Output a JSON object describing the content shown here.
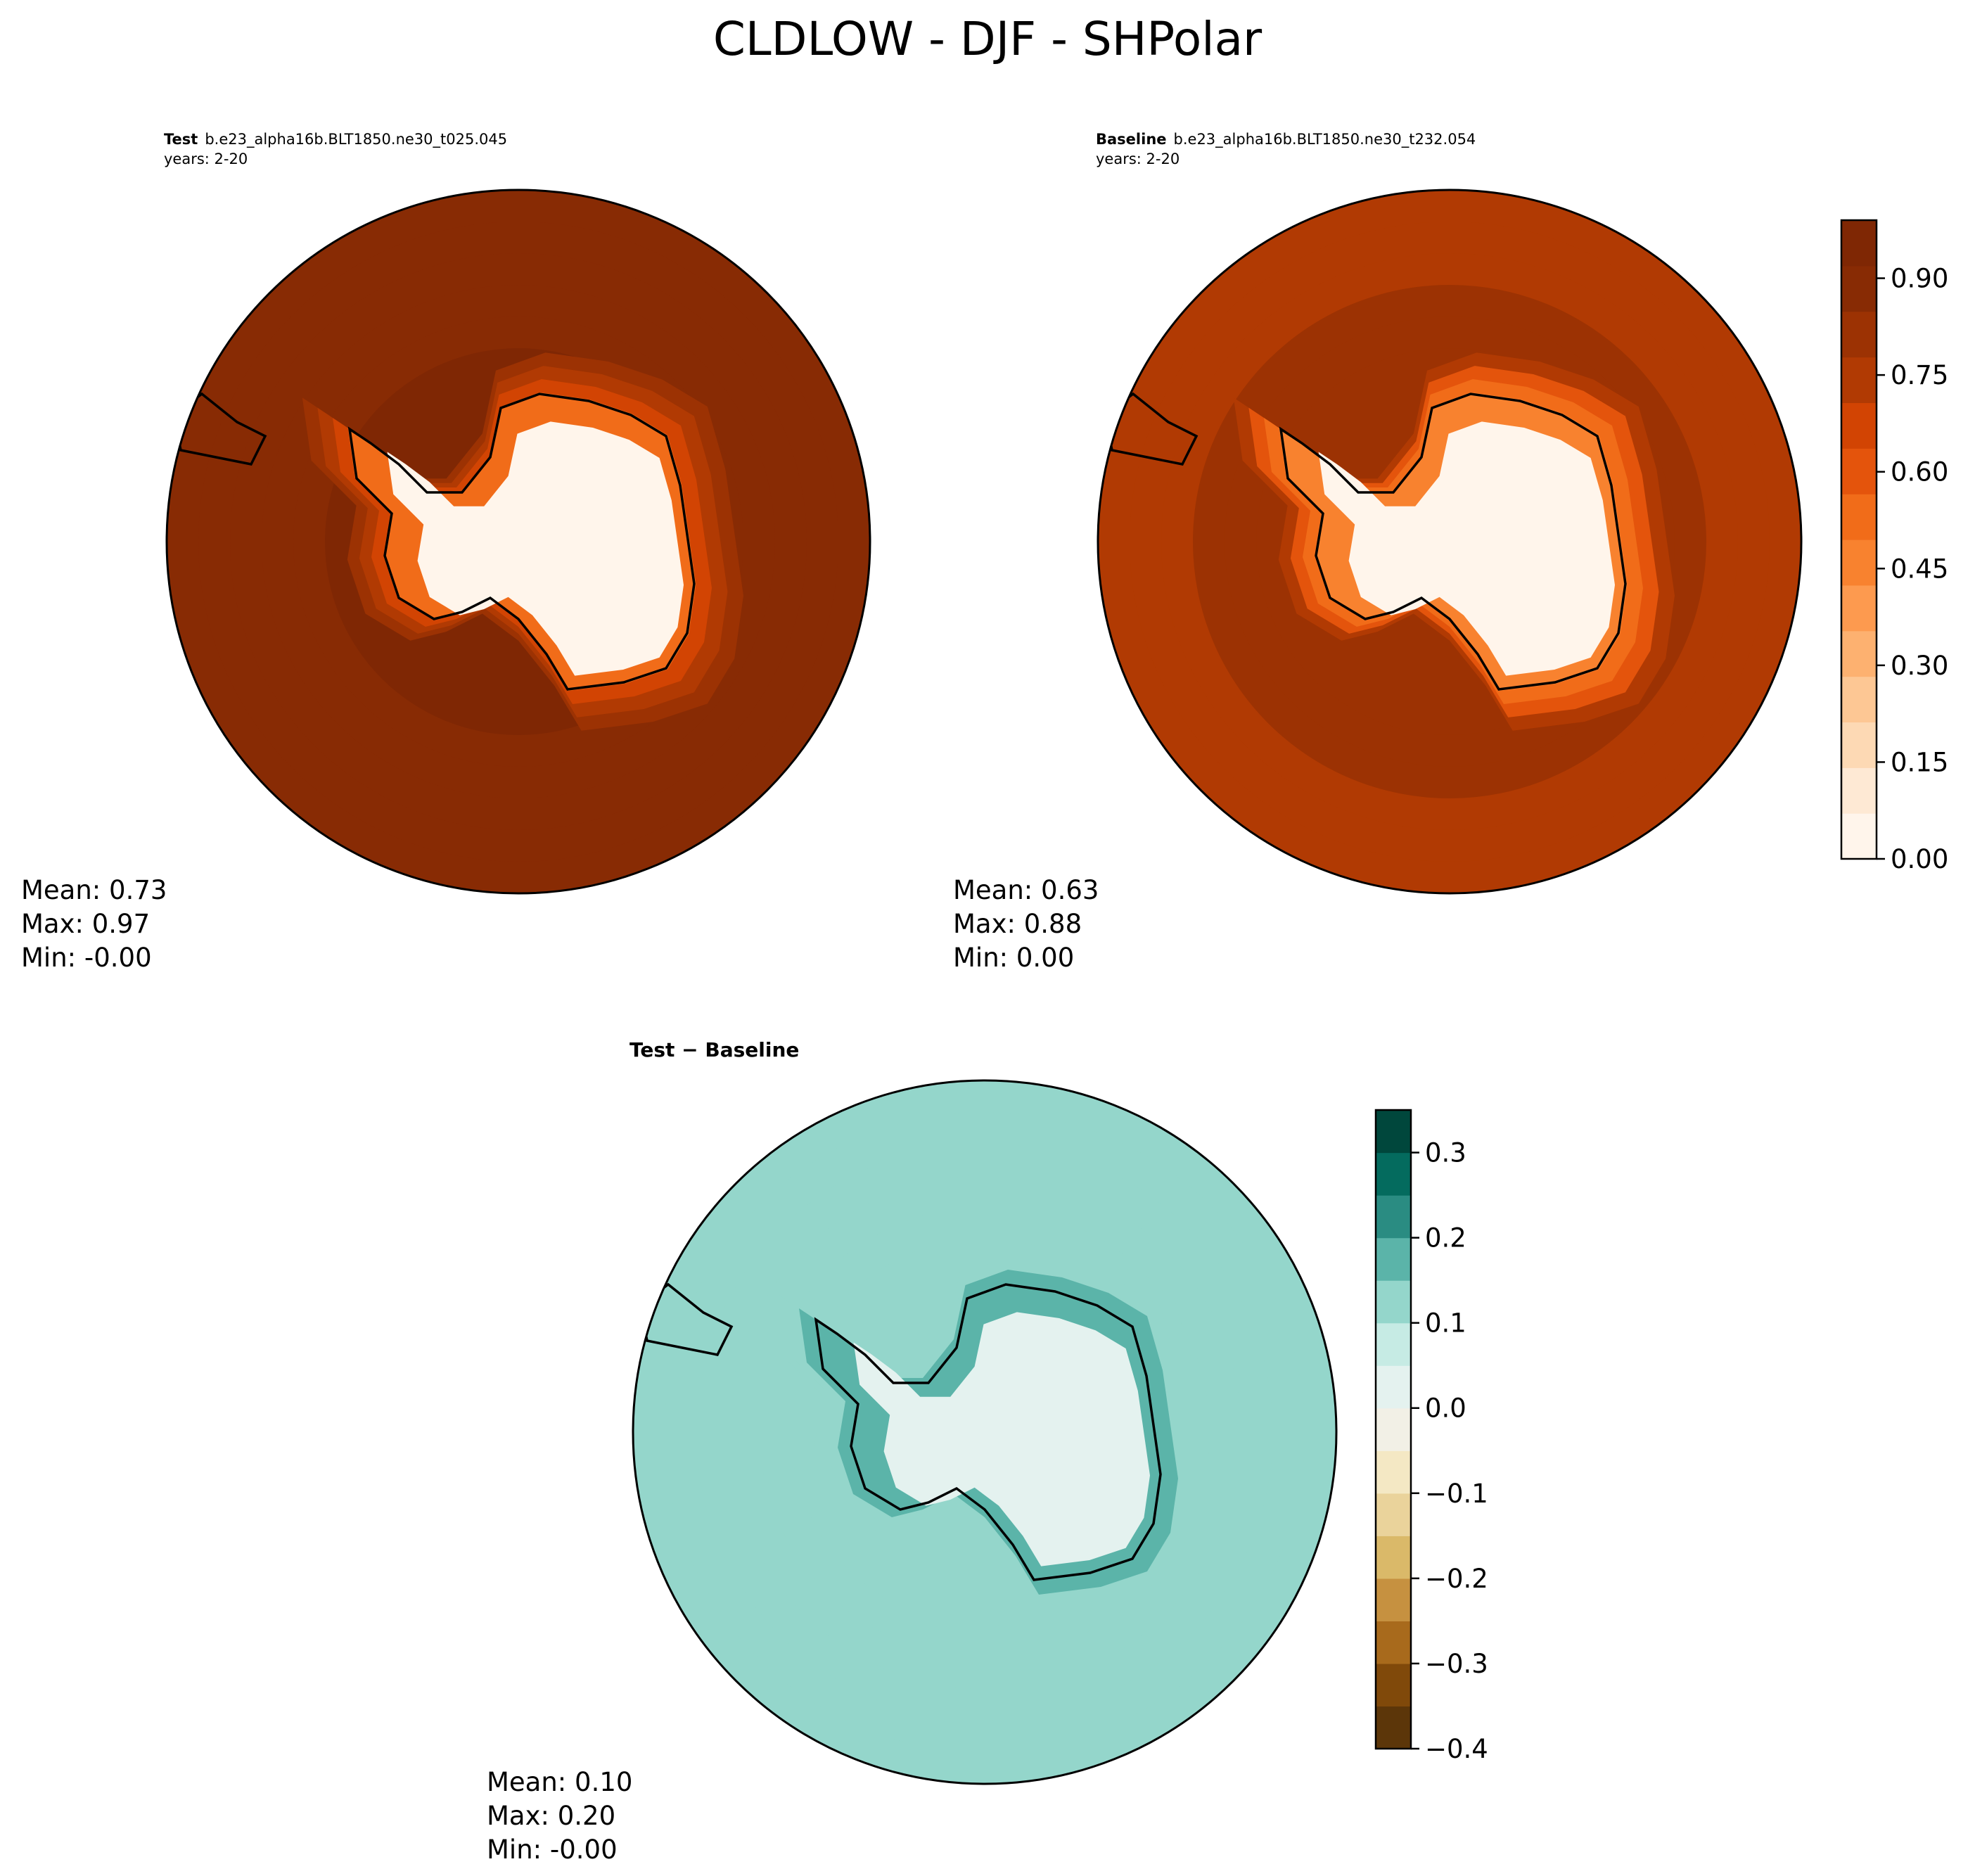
{
  "figure": {
    "title": "CLDLOW - DJF - SHPolar"
  },
  "colors": {
    "oranges": [
      "#fff5eb",
      "#fee9d4",
      "#fdd9b4",
      "#fdc794",
      "#fdb170",
      "#fd9a4f",
      "#f8822f",
      "#f16c19",
      "#e4540c",
      "#d24403",
      "#b13a03",
      "#9c3203",
      "#882b04",
      "#7f2704"
    ],
    "brbg": [
      "#5c3609",
      "#80490a",
      "#a86a1c",
      "#c69140",
      "#dab969",
      "#ead39b",
      "#f4e8c4",
      "#f2f0e6",
      "#e4f2ef",
      "#c6ebe4",
      "#94d6cb",
      "#5bb4a9",
      "#2a8c82",
      "#046b5e",
      "#00473c"
    ],
    "coast": "#000000"
  },
  "chart_data": [
    {
      "type": "heatmap",
      "panel": "test",
      "label_bold": "Test",
      "case": "b.e23_alpha16b.BLT1850.ne30_t025.045",
      "years": "years: 2-20",
      "stats": {
        "mean": "Mean:  0.73",
        "max": "Max:  0.97",
        "min": "Min: -0.00"
      },
      "field_levels": {
        "ocean_far": 0.88,
        "ocean_mid": 0.92,
        "coast": 0.55,
        "interior": 0.0
      },
      "colorbar": null
    },
    {
      "type": "heatmap",
      "panel": "baseline",
      "label_bold": "Baseline",
      "case": "b.e23_alpha16b.BLT1850.ne30_t232.054",
      "years": "years: 2-20",
      "stats": {
        "mean": "Mean:  0.63",
        "max": "Max:  0.88",
        "min": "Min:  0.00"
      },
      "field_levels": {
        "ocean_far": 0.74,
        "ocean_mid": 0.82,
        "coast": 0.45,
        "interior": 0.03
      },
      "colorbar": {
        "ticks": [
          "0.00",
          "0.15",
          "0.30",
          "0.45",
          "0.60",
          "0.75",
          "0.90"
        ],
        "range": [
          0,
          0.99
        ],
        "colormap": "Oranges"
      }
    },
    {
      "type": "heatmap",
      "panel": "difference",
      "label_bold": "Test − Baseline",
      "stats": {
        "mean": "Mean:  0.10",
        "max": "Max:  0.20",
        "min": "Min: -0.00"
      },
      "field_levels": {
        "ocean_far": 0.14,
        "ocean_mid": 0.1,
        "coast": 0.17,
        "interior": 0.02
      },
      "colorbar": {
        "ticks": [
          "−0.4",
          "−0.3",
          "−0.2",
          "−0.1",
          "0.0",
          "0.1",
          "0.2",
          "0.3"
        ],
        "range": [
          -0.4,
          0.35
        ],
        "colormap": "BrBG"
      }
    }
  ]
}
